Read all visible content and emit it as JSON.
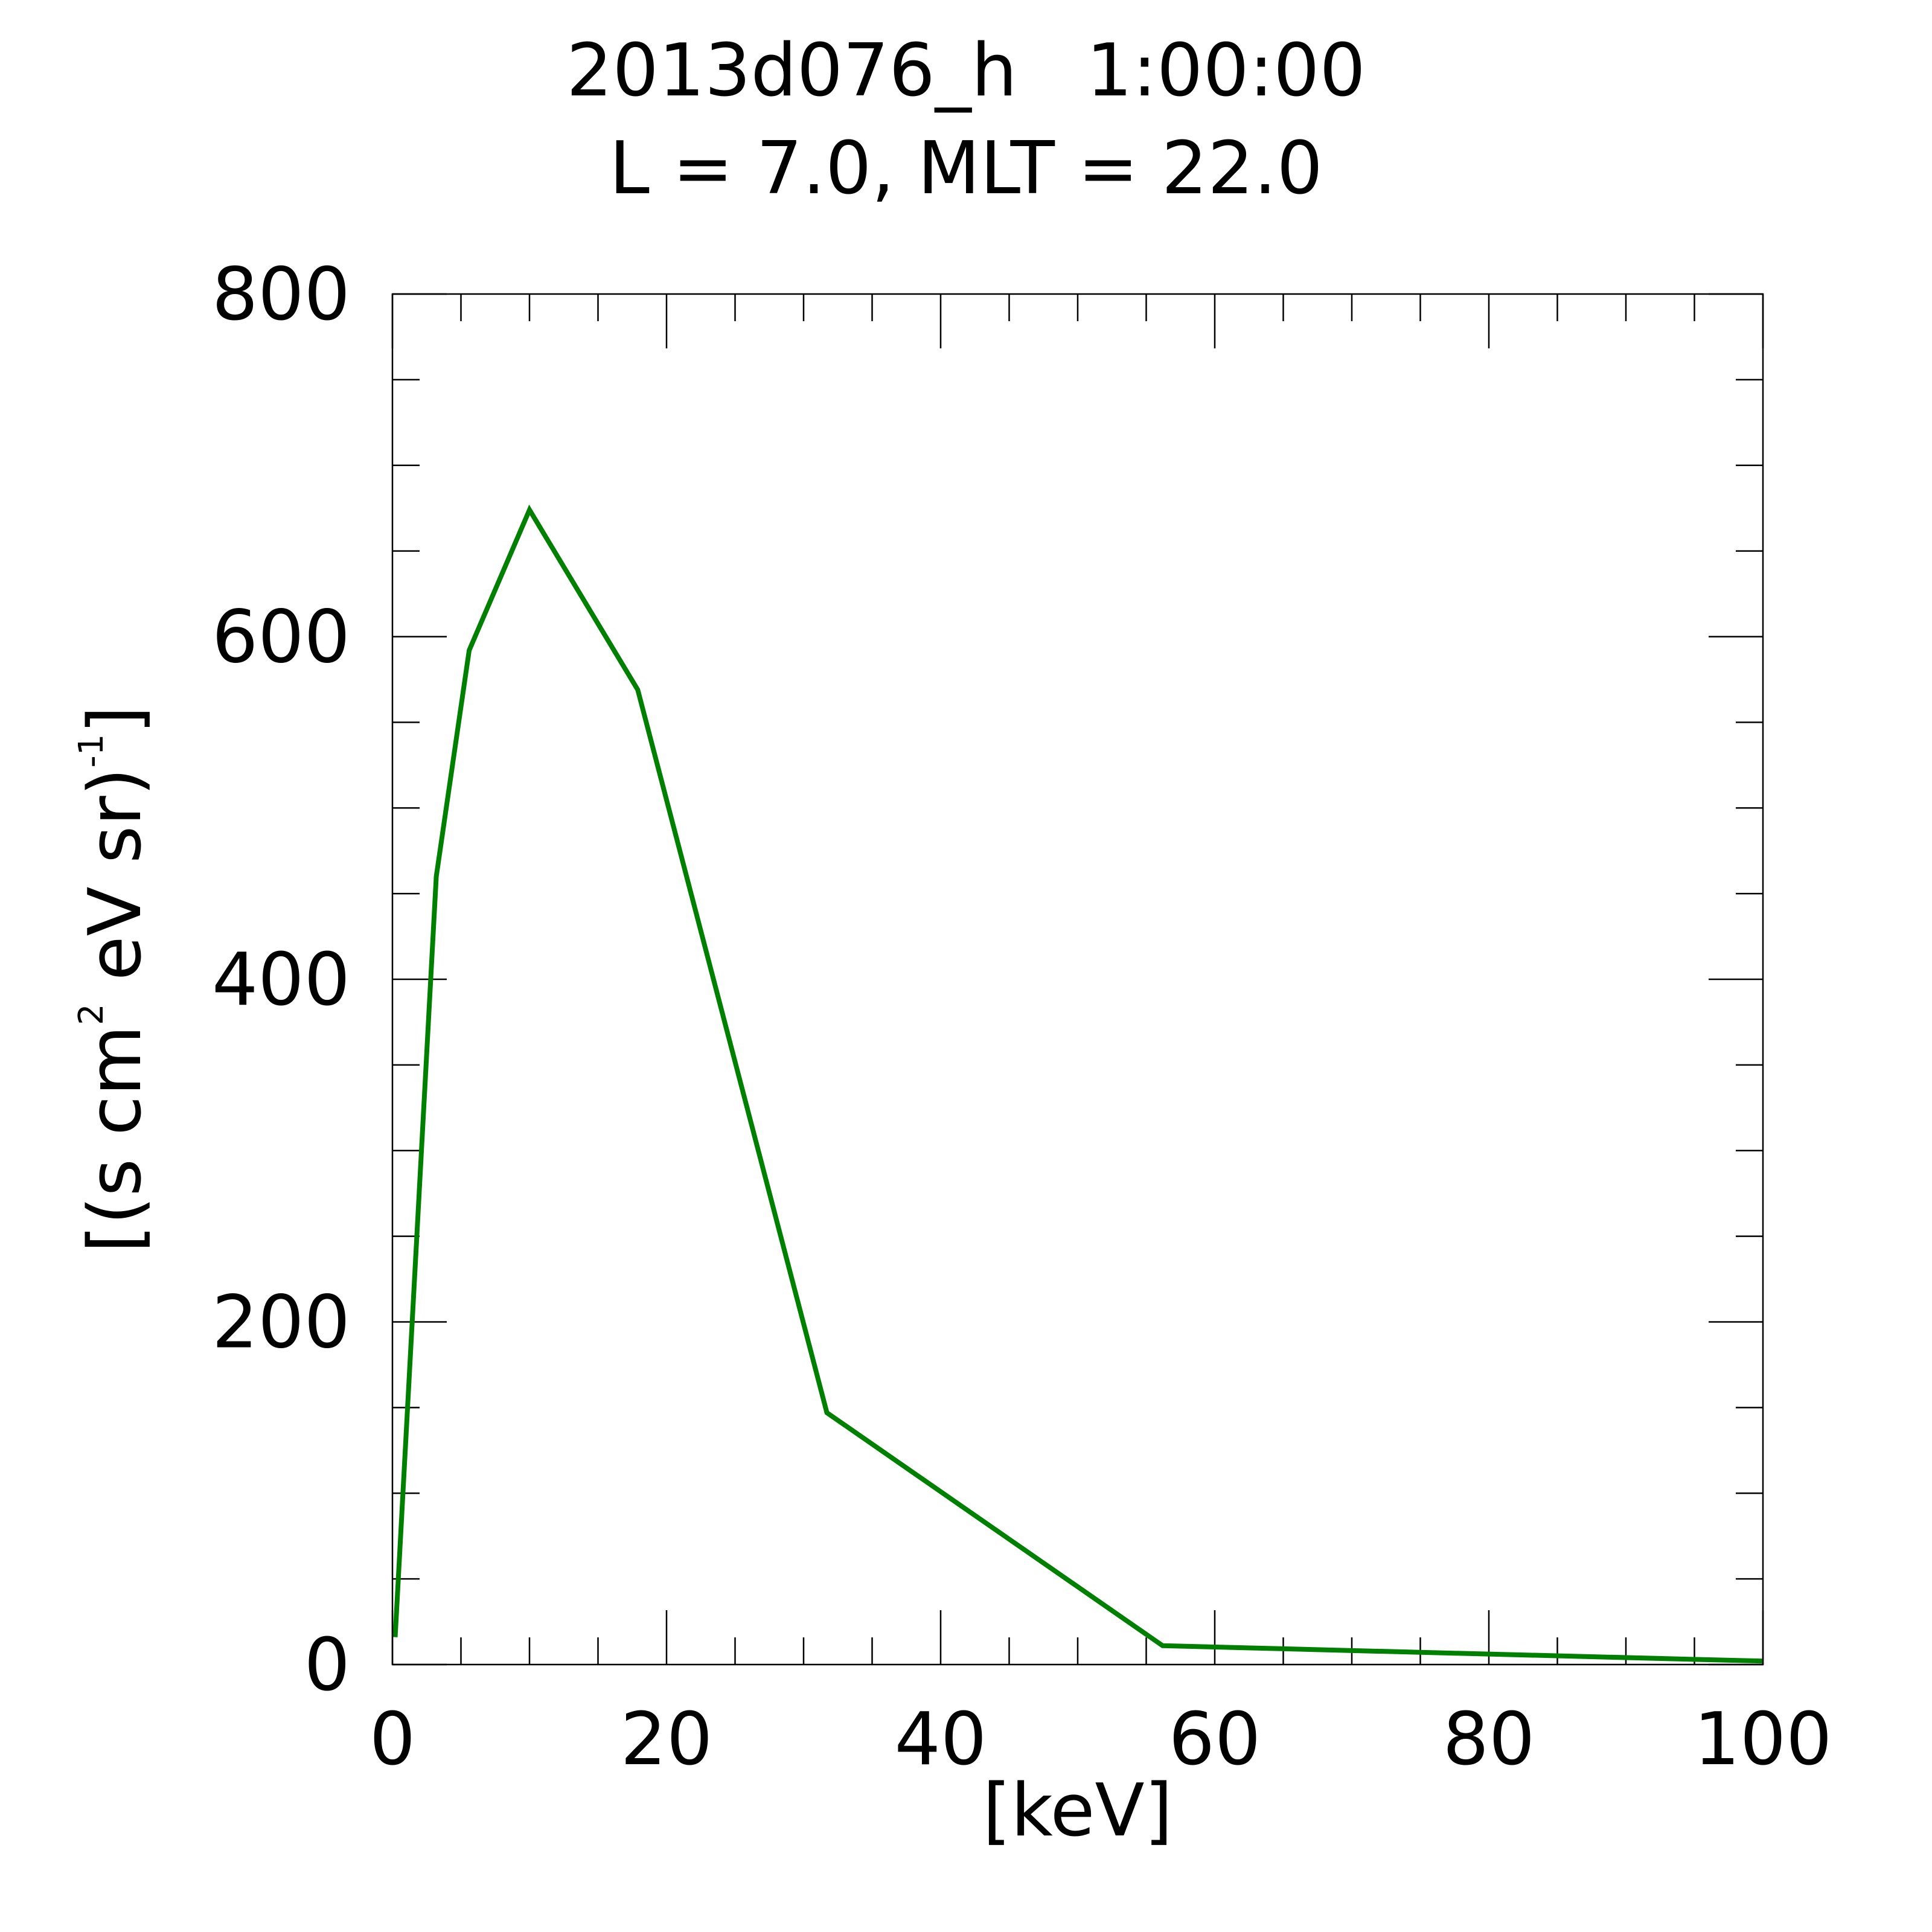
{
  "chart_data": {
    "type": "line",
    "title": "2013d076_h   1:00:00",
    "subtitle": "L = 7.0, MLT = 22.0",
    "xlabel": "[keV]",
    "ylabel": {
      "pre": "[(s cm",
      "sup1": "2",
      "mid": " eV sr)",
      "sup2": "-1",
      "post": "]"
    },
    "xlim": [
      0,
      100
    ],
    "ylim": [
      0,
      800
    ],
    "x_ticks": [
      0,
      20,
      40,
      60,
      80,
      100
    ],
    "y_ticks": [
      0,
      200,
      400,
      600,
      800
    ],
    "x_minor_step": 5,
    "y_minor_step": 50,
    "grid": false,
    "legend": "none",
    "series": [
      {
        "color": "#008000",
        "x": [
          0.2,
          3.2,
          5.6,
          10.0,
          17.9,
          31.7,
          56.2,
          100.0
        ],
        "y": [
          16,
          460,
          592,
          674,
          569,
          147,
          11,
          2
        ]
      }
    ]
  }
}
